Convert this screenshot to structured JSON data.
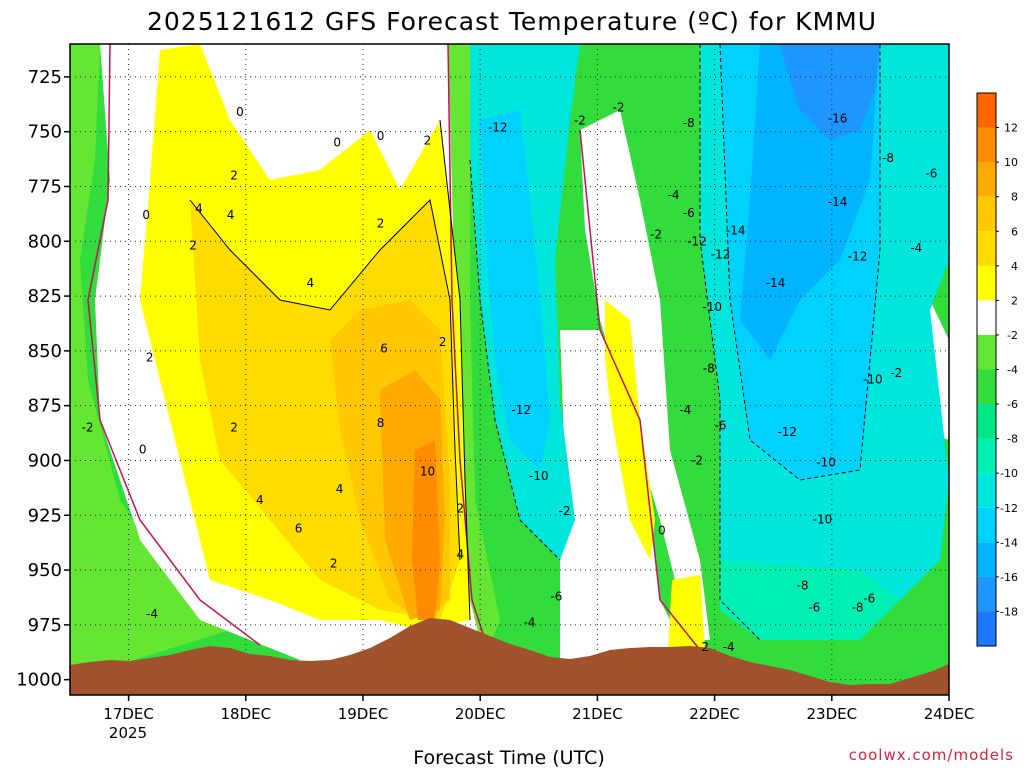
{
  "chart_data": {
    "type": "heatmap",
    "title": "2025121612 GFS Forecast Temperature (ºC) for KMMU",
    "xlabel": "Forecast Time (UTC)",
    "ylabel": "",
    "x_ticks": [
      "17DEC",
      "18DEC",
      "19DEC",
      "20DEC",
      "21DEC",
      "22DEC",
      "23DEC",
      "24DEC"
    ],
    "x_sub_tick": "2025",
    "y_ticks": [
      725,
      750,
      775,
      800,
      825,
      850,
      875,
      900,
      925,
      950,
      975,
      1000
    ],
    "ylim": [
      1007,
      710
    ],
    "xlim": [
      16.5,
      24.0
    ],
    "colorbar": {
      "levels": [
        -20,
        -18,
        -16,
        -14,
        -12,
        -10,
        -8,
        -6,
        -4,
        -2,
        2,
        4,
        6,
        8,
        10,
        12,
        14
      ],
      "labels": [
        "-18",
        "-16",
        "-14",
        "-12",
        "-10",
        "-8",
        "-6",
        "-4",
        "-2",
        "2",
        "4",
        "6",
        "8",
        "10",
        "12"
      ],
      "colors": [
        "#1e78ff",
        "#1e96ff",
        "#00b4ff",
        "#00d2ff",
        "#00e6dc",
        "#00f0b4",
        "#00e682",
        "#32dc3c",
        "#64e632",
        "#ffffff",
        "#ffff00",
        "#ffdc00",
        "#ffc800",
        "#ffaa00",
        "#ff8c00",
        "#ff6400"
      ]
    },
    "surface_color": "#a0522d",
    "contour_labels": [
      {
        "t": 17.15,
        "p": 788,
        "v": "0"
      },
      {
        "t": 17.6,
        "p": 785,
        "v": "4"
      },
      {
        "t": 17.55,
        "p": 802,
        "v": "2"
      },
      {
        "t": 16.65,
        "p": 885,
        "v": "-2"
      },
      {
        "t": 17.12,
        "p": 895,
        "v": "0"
      },
      {
        "t": 17.18,
        "p": 853,
        "v": "2"
      },
      {
        "t": 17.2,
        "p": 970,
        "v": "-4"
      },
      {
        "t": 17.95,
        "p": 741,
        "v": "0"
      },
      {
        "t": 17.9,
        "p": 770,
        "v": "2"
      },
      {
        "t": 17.87,
        "p": 788,
        "v": "4"
      },
      {
        "t": 17.9,
        "p": 885,
        "v": "2"
      },
      {
        "t": 18.12,
        "p": 918,
        "v": "4"
      },
      {
        "t": 18.45,
        "p": 931,
        "v": "6"
      },
      {
        "t": 18.55,
        "p": 819,
        "v": "4"
      },
      {
        "t": 18.8,
        "p": 913,
        "v": "4"
      },
      {
        "t": 18.75,
        "p": 947,
        "v": "2"
      },
      {
        "t": 18.78,
        "p": 755,
        "v": "0"
      },
      {
        "t": 19.15,
        "p": 752,
        "v": "0"
      },
      {
        "t": 19.15,
        "p": 792,
        "v": "2"
      },
      {
        "t": 19.55,
        "p": 754,
        "v": "2"
      },
      {
        "t": 19.18,
        "p": 849,
        "v": "6"
      },
      {
        "t": 19.15,
        "p": 883,
        "v": "8"
      },
      {
        "t": 19.55,
        "p": 905,
        "v": "10"
      },
      {
        "t": 19.68,
        "p": 846,
        "v": "2"
      },
      {
        "t": 19.83,
        "p": 922,
        "v": "2"
      },
      {
        "t": 19.83,
        "p": 943,
        "v": "4"
      },
      {
        "t": 20.15,
        "p": 748,
        "v": "-12"
      },
      {
        "t": 20.35,
        "p": 877,
        "v": "-12"
      },
      {
        "t": 20.5,
        "p": 907,
        "v": "-10"
      },
      {
        "t": 20.65,
        "p": 962,
        "v": "-6"
      },
      {
        "t": 20.42,
        "p": 974,
        "v": "-4"
      },
      {
        "t": 20.72,
        "p": 923,
        "v": "-2"
      },
      {
        "t": 20.85,
        "p": 745,
        "v": "-2"
      },
      {
        "t": 21.18,
        "p": 739,
        "v": "-2"
      },
      {
        "t": 21.5,
        "p": 797,
        "v": "-2"
      },
      {
        "t": 21.55,
        "p": 932,
        "v": "0"
      },
      {
        "t": 21.78,
        "p": 746,
        "v": "-8"
      },
      {
        "t": 21.65,
        "p": 779,
        "v": "-4"
      },
      {
        "t": 21.78,
        "p": 787,
        "v": "-6"
      },
      {
        "t": 21.85,
        "p": 800,
        "v": "-12"
      },
      {
        "t": 22.05,
        "p": 806,
        "v": "-12"
      },
      {
        "t": 22.18,
        "p": 795,
        "v": "-14"
      },
      {
        "t": 21.98,
        "p": 830,
        "v": "-10"
      },
      {
        "t": 21.95,
        "p": 858,
        "v": "-8"
      },
      {
        "t": 21.75,
        "p": 877,
        "v": "-4"
      },
      {
        "t": 22.05,
        "p": 884,
        "v": "-6"
      },
      {
        "t": 21.85,
        "p": 900,
        "v": "-2"
      },
      {
        "t": 21.92,
        "p": 985,
        "v": "2"
      },
      {
        "t": 22.12,
        "p": 985,
        "v": "-4"
      },
      {
        "t": 22.52,
        "p": 819,
        "v": "-14"
      },
      {
        "t": 22.62,
        "p": 887,
        "v": "-12"
      },
      {
        "t": 22.95,
        "p": 901,
        "v": "-10"
      },
      {
        "t": 22.92,
        "p": 927,
        "v": "-10"
      },
      {
        "t": 22.75,
        "p": 957,
        "v": "-8"
      },
      {
        "t": 22.85,
        "p": 967,
        "v": "-6"
      },
      {
        "t": 23.05,
        "p": 744,
        "v": "-16"
      },
      {
        "t": 23.05,
        "p": 782,
        "v": "-14"
      },
      {
        "t": 23.22,
        "p": 807,
        "v": "-12"
      },
      {
        "t": 23.35,
        "p": 863,
        "v": "-10"
      },
      {
        "t": 23.55,
        "p": 860,
        "v": "-2"
      },
      {
        "t": 23.48,
        "p": 762,
        "v": "-8"
      },
      {
        "t": 23.85,
        "p": 769,
        "v": "-6"
      },
      {
        "t": 23.72,
        "p": 803,
        "v": "-4"
      },
      {
        "t": 23.32,
        "p": 963,
        "v": "-6"
      },
      {
        "t": 23.22,
        "p": 967,
        "v": "-8"
      }
    ]
  },
  "credit": "coolwx.com/models"
}
